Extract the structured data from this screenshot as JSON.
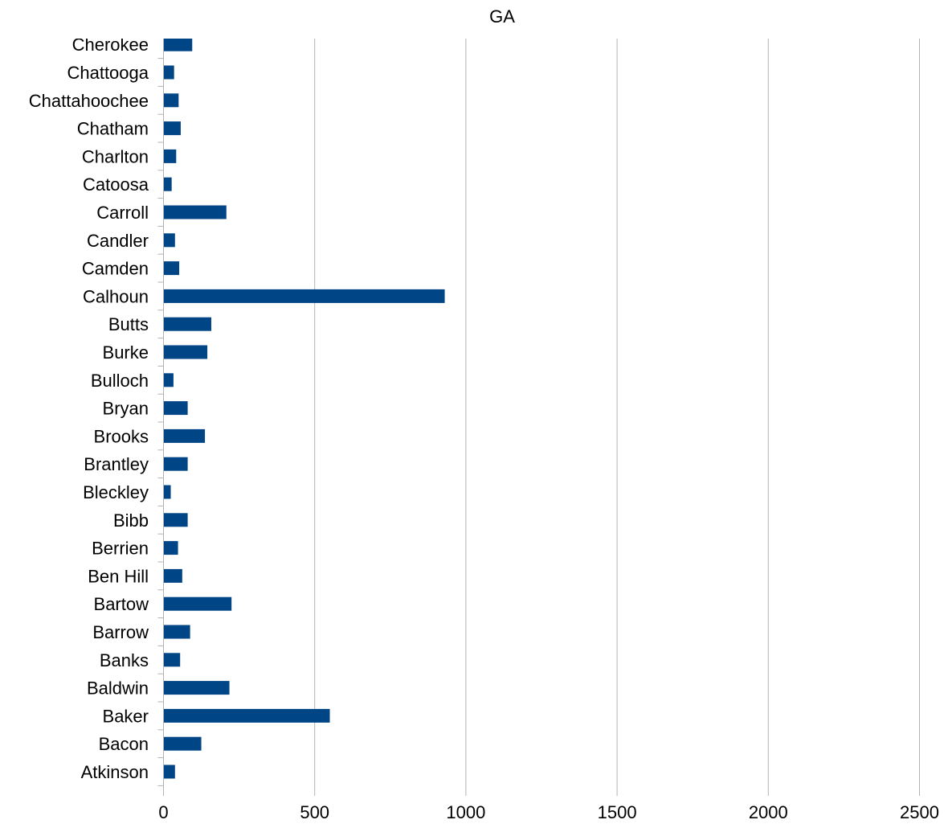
{
  "chart_data": {
    "type": "bar",
    "orientation": "horizontal",
    "title": "GA",
    "xlabel": "",
    "ylabel": "",
    "xlim": [
      0,
      2500
    ],
    "x_ticks": [
      "0",
      "500",
      "1000",
      "1500",
      "2000",
      "2500"
    ],
    "grid": "vertical",
    "legend": "none",
    "bar_color": "#004586",
    "categories": [
      "Atkinson",
      "Bacon",
      "Baker",
      "Baldwin",
      "Banks",
      "Barrow",
      "Bartow",
      "Ben Hill",
      "Berrien",
      "Bibb",
      "Bleckley",
      "Brantley",
      "Brooks",
      "Bryan",
      "Bulloch",
      "Burke",
      "Butts",
      "Calhoun",
      "Camden",
      "Candler",
      "Carroll",
      "Catoosa",
      "Charlton",
      "Chatham",
      "Chattahoochee",
      "Chattooga",
      "Cherokee"
    ],
    "values": [
      38,
      125,
      550,
      218,
      55,
      88,
      225,
      62,
      48,
      80,
      24,
      80,
      137,
      80,
      33,
      145,
      158,
      930,
      52,
      38,
      208,
      27,
      42,
      57,
      50,
      35,
      95
    ]
  }
}
